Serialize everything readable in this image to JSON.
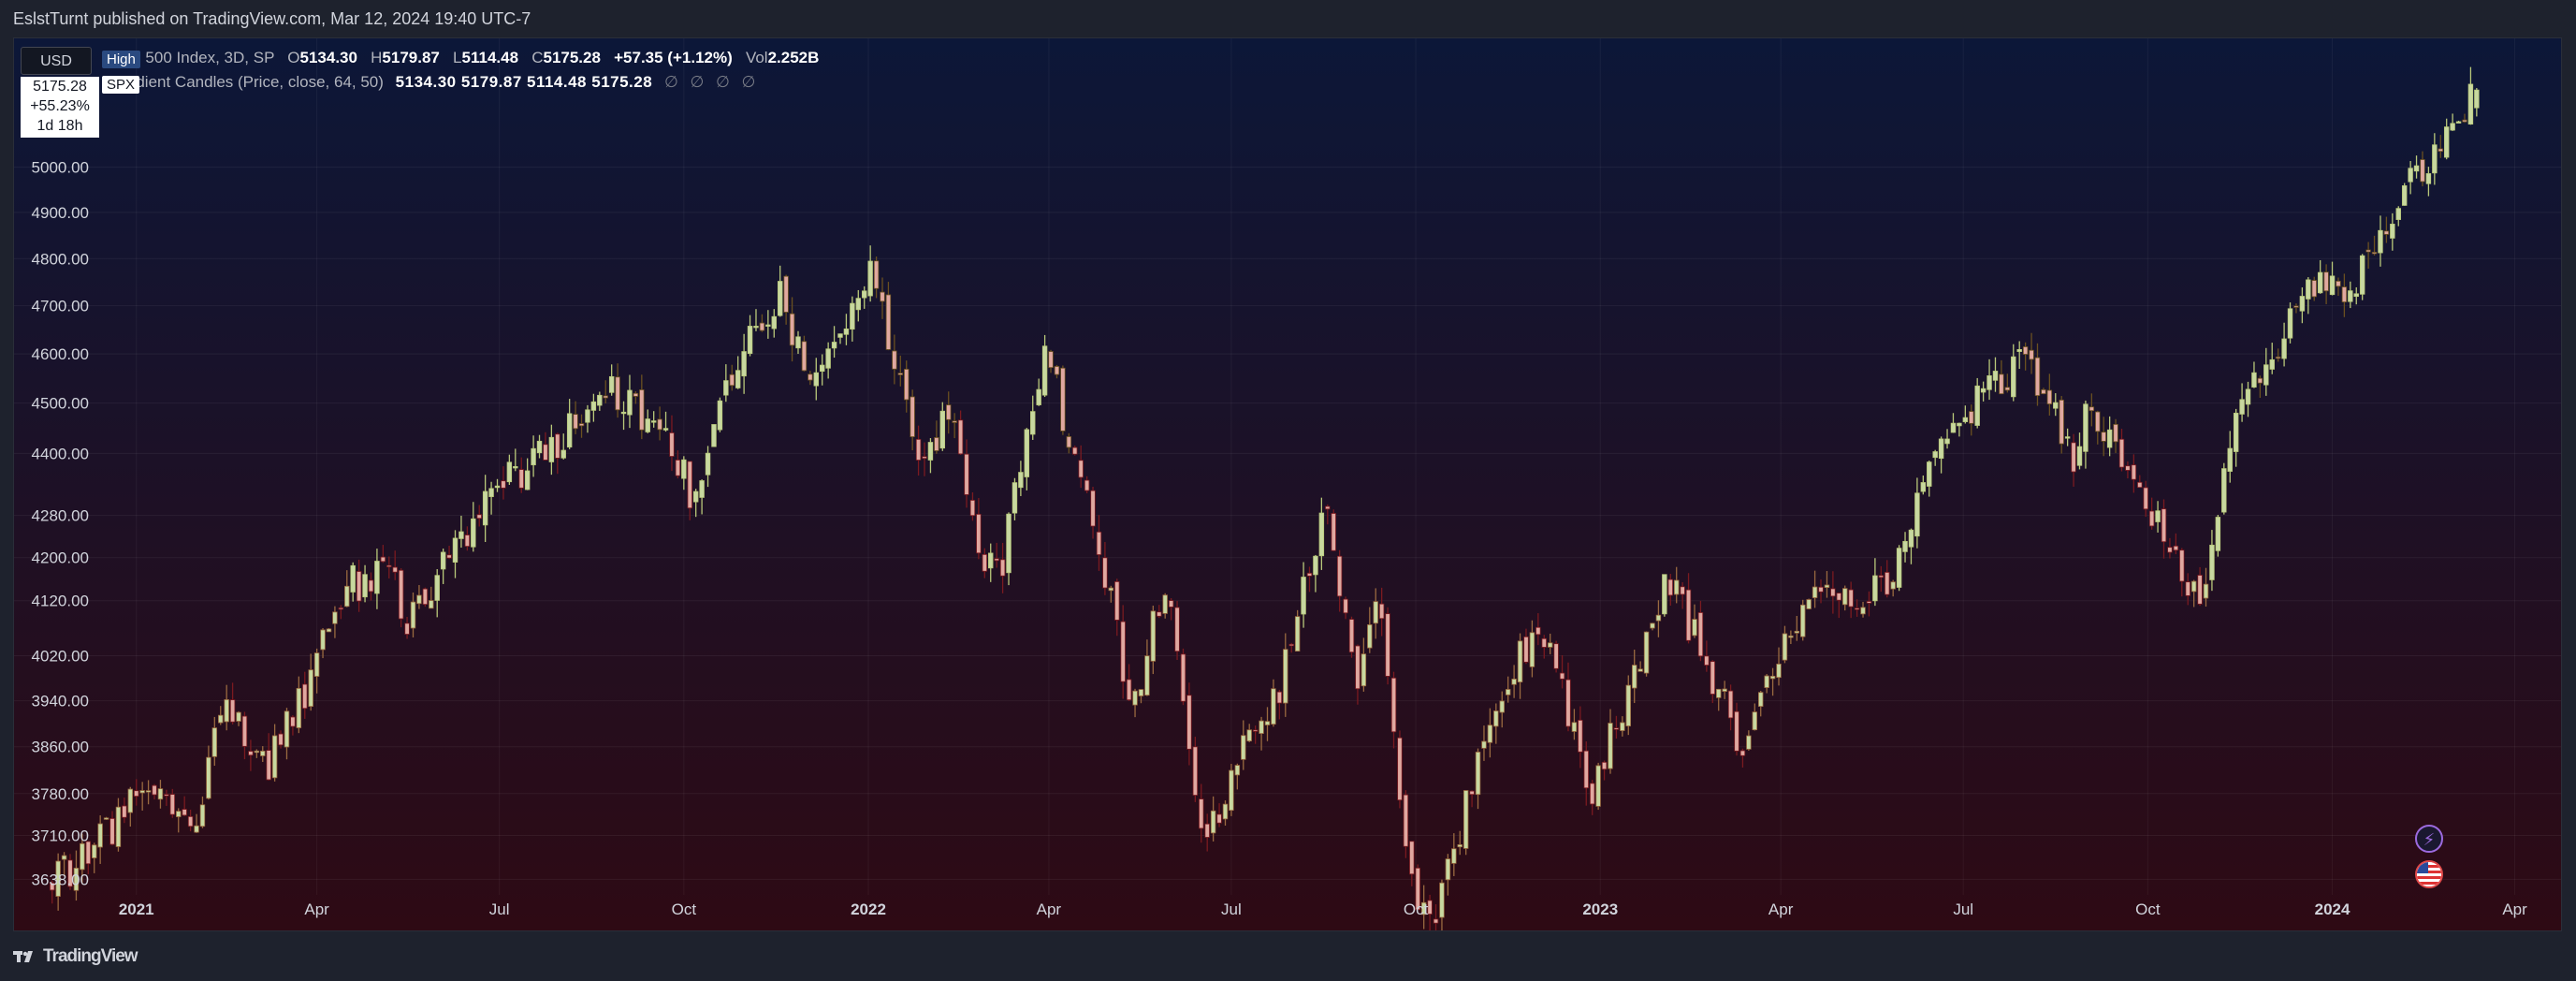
{
  "header": {
    "caption": "EslstTurnt published on TradingView.com, Mar 12, 2024 19:40 UTC-7"
  },
  "currency": "USD",
  "legend": {
    "symbol_line_prefix": "S&P 500 Index, 3D, SP",
    "open_label": "O",
    "open": "5134.30",
    "high_label": "H",
    "high": "5179.87",
    "low_label": "L",
    "low": "5114.48",
    "close_label": "C",
    "close": "5175.28",
    "change": "+57.35 (+1.12%)",
    "vol_label": "Vol",
    "vol": "2.252B",
    "indicator_name": "Gradient Candles (Price, close, 64, 50)",
    "indicator_values": "5134.30  5179.87  5114.48  5175.28",
    "empty_values": "∅ ∅ ∅ ∅"
  },
  "tags": {
    "high": "High",
    "symbol": "SPX"
  },
  "price_badge": {
    "price": "5175.28",
    "change_pct": "+55.23%",
    "countdown": "1d 18h"
  },
  "brand": "TradingView",
  "icons": [
    "tradingview-logo-icon",
    "lightning-icon",
    "us-flag-icon"
  ],
  "colors": {
    "bg_top": "#0c1738",
    "bg_bottom": "#2e0a14",
    "bull_candle": "#c8d8a0",
    "bear_candle": "#e0a8a0",
    "wick_bull": "#b9c97a",
    "wick_bear": "#7a1a20"
  },
  "chart_data": {
    "type": "candlestick",
    "title": "S&P 500 Index, 3D, SP",
    "interval": "3D",
    "scale": "log",
    "y_axis_position": "left",
    "y_ticks": [
      "5000.00",
      "4900.00",
      "4800.00",
      "4700.00",
      "4600.00",
      "4500.00",
      "4400.00",
      "4280.00",
      "4200.00",
      "4120.00",
      "4020.00",
      "3940.00",
      "3860.00",
      "3780.00",
      "3710.00",
      "3638.00"
    ],
    "x_ticks": [
      "2021",
      "Apr",
      "Jul",
      "Oct",
      "2022",
      "Apr",
      "Jul",
      "Oct",
      "2023",
      "Apr",
      "Jul",
      "Oct",
      "2024",
      "Apr"
    ],
    "x_range": [
      "2020-11-01",
      "2024-04-25"
    ],
    "anchors": [
      [
        "2020-11-20",
        3630
      ],
      [
        "2020-12-15",
        3700
      ],
      [
        "2021-01-10",
        3800
      ],
      [
        "2021-01-28",
        3720
      ],
      [
        "2021-02-15",
        3930
      ],
      [
        "2021-03-05",
        3820
      ],
      [
        "2021-03-25",
        3940
      ],
      [
        "2021-04-15",
        4150
      ],
      [
        "2021-05-10",
        4170
      ],
      [
        "2021-05-14",
        4080
      ],
      [
        "2021-06-15",
        4240
      ],
      [
        "2021-07-01",
        4330
      ],
      [
        "2021-07-25",
        4400
      ],
      [
        "2021-08-30",
        4530
      ],
      [
        "2021-09-25",
        4410
      ],
      [
        "2021-10-05",
        4320
      ],
      [
        "2021-10-25",
        4560
      ],
      [
        "2021-11-18",
        4710
      ],
      [
        "2021-12-03",
        4550
      ],
      [
        "2021-12-20",
        4620
      ],
      [
        "2022-01-03",
        4800
      ],
      [
        "2022-01-27",
        4330
      ],
      [
        "2022-02-10",
        4500
      ],
      [
        "2022-02-24",
        4210
      ],
      [
        "2022-03-08",
        4170
      ],
      [
        "2022-03-30",
        4620
      ],
      [
        "2022-04-12",
        4420
      ],
      [
        "2022-04-28",
        4190
      ],
      [
        "2022-05-12",
        3930
      ],
      [
        "2022-05-30",
        4150
      ],
      [
        "2022-06-17",
        3680
      ],
      [
        "2022-06-30",
        3800
      ],
      [
        "2022-07-25",
        3960
      ],
      [
        "2022-08-16",
        4300
      ],
      [
        "2022-09-02",
        3960
      ],
      [
        "2022-09-12",
        4110
      ],
      [
        "2022-09-30",
        3590
      ],
      [
        "2022-10-13",
        3600
      ],
      [
        "2022-11-10",
        3950
      ],
      [
        "2022-12-01",
        4080
      ],
      [
        "2022-12-28",
        3790
      ],
      [
        "2023-01-27",
        4070
      ],
      [
        "2023-02-02",
        4180
      ],
      [
        "2023-03-13",
        3860
      ],
      [
        "2023-04-15",
        4140
      ],
      [
        "2023-05-25",
        4140
      ],
      [
        "2023-06-15",
        4420
      ],
      [
        "2023-07-31",
        4590
      ],
      [
        "2023-08-25",
        4390
      ],
      [
        "2023-09-01",
        4520
      ],
      [
        "2023-10-05",
        4260
      ],
      [
        "2023-10-27",
        4120
      ],
      [
        "2023-11-15",
        4500
      ],
      [
        "2023-12-28",
        4780
      ],
      [
        "2024-01-05",
        4690
      ],
      [
        "2024-02-01",
        4900
      ],
      [
        "2024-03-06",
        5130
      ],
      [
        "2024-03-12",
        5175.28
      ]
    ],
    "last_candle": {
      "open": 5134.3,
      "high": 5179.87,
      "low": 5114.48,
      "close": 5175.28
    }
  }
}
